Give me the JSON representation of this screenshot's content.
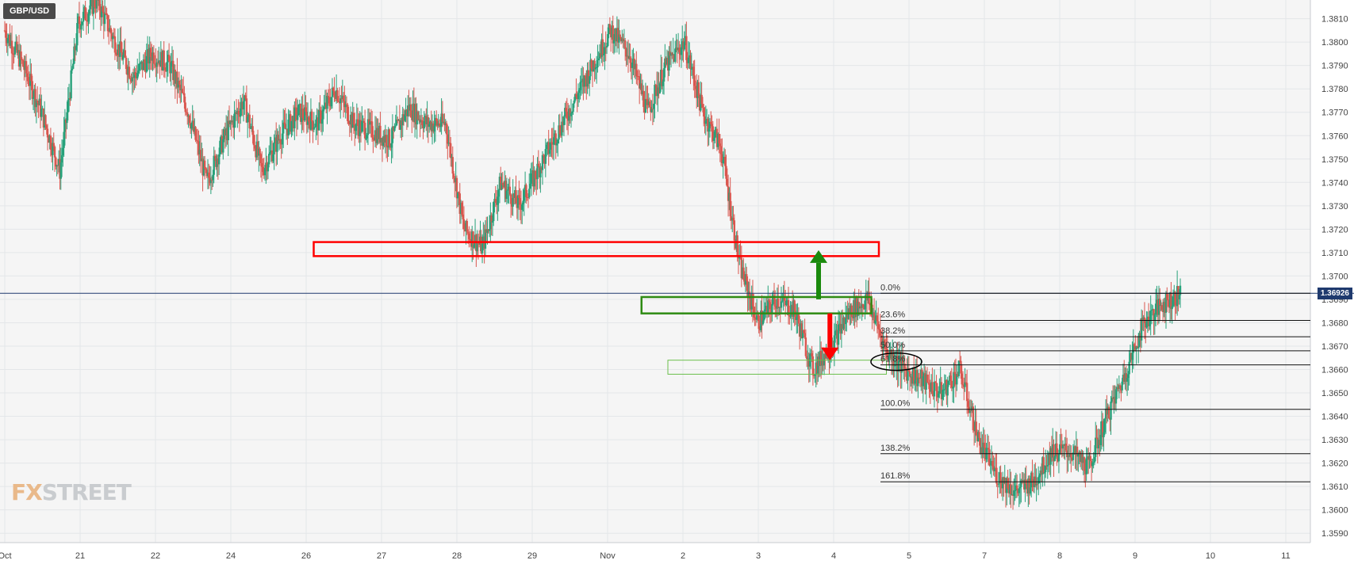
{
  "symbol": "GBP/USD",
  "last_price_label": "1.36926",
  "last_price": 1.36926,
  "logo": {
    "fx": "FX",
    "street": "STREET"
  },
  "colors": {
    "up": "#27a17a",
    "down": "#d9574f",
    "grid": "#e4e6e9",
    "bg": "#f5f5f5",
    "last": "#1f3a6e",
    "resistance": "#ff0000",
    "support": "#2e8b13",
    "zone": "#6abf4b"
  },
  "chart_data": {
    "type": "candlestick",
    "title": "GBP/USD",
    "ylim": [
      1.3586,
      1.3818
    ],
    "y_ticks": [
      "1.3590",
      "1.3600",
      "1.3610",
      "1.3620",
      "1.3630",
      "1.3640",
      "1.3650",
      "1.3660",
      "1.3670",
      "1.3680",
      "1.3690",
      "1.3700",
      "1.3710",
      "1.3720",
      "1.3730",
      "1.3740",
      "1.3750",
      "1.3760",
      "1.3770",
      "1.3780",
      "1.3790",
      "1.3800",
      "1.3810"
    ],
    "x_ticks": [
      "Oct",
      "21",
      "22",
      "24",
      "26",
      "27",
      "28",
      "29",
      "Nov",
      "2",
      "3",
      "4",
      "5",
      "7",
      "8",
      "9",
      "10",
      "11"
    ],
    "x_tick_index": [
      0,
      1,
      2,
      3,
      4,
      5,
      6,
      7,
      8,
      9,
      10,
      11,
      12,
      13,
      14,
      15,
      16,
      17
    ],
    "series_close": [
      1.3805,
      1.379,
      1.377,
      1.3745,
      1.3808,
      1.3818,
      1.38,
      1.3785,
      1.3795,
      1.379,
      1.377,
      1.374,
      1.376,
      1.3775,
      1.3745,
      1.376,
      1.377,
      1.3765,
      1.378,
      1.3765,
      1.3762,
      1.3758,
      1.3772,
      1.3765,
      1.3765,
      1.372,
      1.3712,
      1.374,
      1.373,
      1.3745,
      1.376,
      1.3775,
      1.379,
      1.3805,
      1.3795,
      1.377,
      1.379,
      1.38,
      1.377,
      1.3755,
      1.3705,
      1.368,
      1.369,
      1.3685,
      1.366,
      1.367,
      1.3685,
      1.369,
      1.3668,
      1.366,
      1.3655,
      1.365,
      1.366,
      1.363,
      1.3615,
      1.3608,
      1.3612,
      1.3625,
      1.3625,
      1.3618,
      1.364,
      1.3658,
      1.368,
      1.3688,
      1.3692
    ],
    "candle_span": [
      0,
      15.6
    ],
    "fibonacci": [
      {
        "label": "0.0%",
        "price": 1.36926
      },
      {
        "label": "23.6%",
        "price": 1.3681
      },
      {
        "label": "38.2%",
        "price": 1.3674
      },
      {
        "label": "50.0%",
        "price": 1.3668
      },
      {
        "label": "61.8%",
        "price": 1.3662
      },
      {
        "label": "100.0%",
        "price": 1.3643
      },
      {
        "label": "138.2%",
        "price": 1.3624
      },
      {
        "label": "161.8%",
        "price": 1.3612
      }
    ],
    "zones": [
      {
        "name": "resistance-zone",
        "from": [
          4.1,
          1.37145
        ],
        "to": [
          11.6,
          1.37085
        ],
        "color": "#ff0000"
      },
      {
        "name": "support-zone",
        "from": [
          8.45,
          1.3691
        ],
        "to": [
          11.5,
          1.3684
        ],
        "color": "#2e8b13"
      },
      {
        "name": "fib-zone",
        "from": [
          8.8,
          1.3664
        ],
        "to": [
          11.7,
          1.3658
        ],
        "color": "#6abf4b"
      }
    ],
    "arrows": [
      {
        "name": "up-arrow",
        "x": 10.8,
        "from": 1.369,
        "to": 1.3711,
        "color": "#1a8a0c"
      },
      {
        "name": "down-arrow",
        "x": 10.95,
        "from": 1.3684,
        "to": 1.3664,
        "color": "#ff0000"
      }
    ]
  }
}
